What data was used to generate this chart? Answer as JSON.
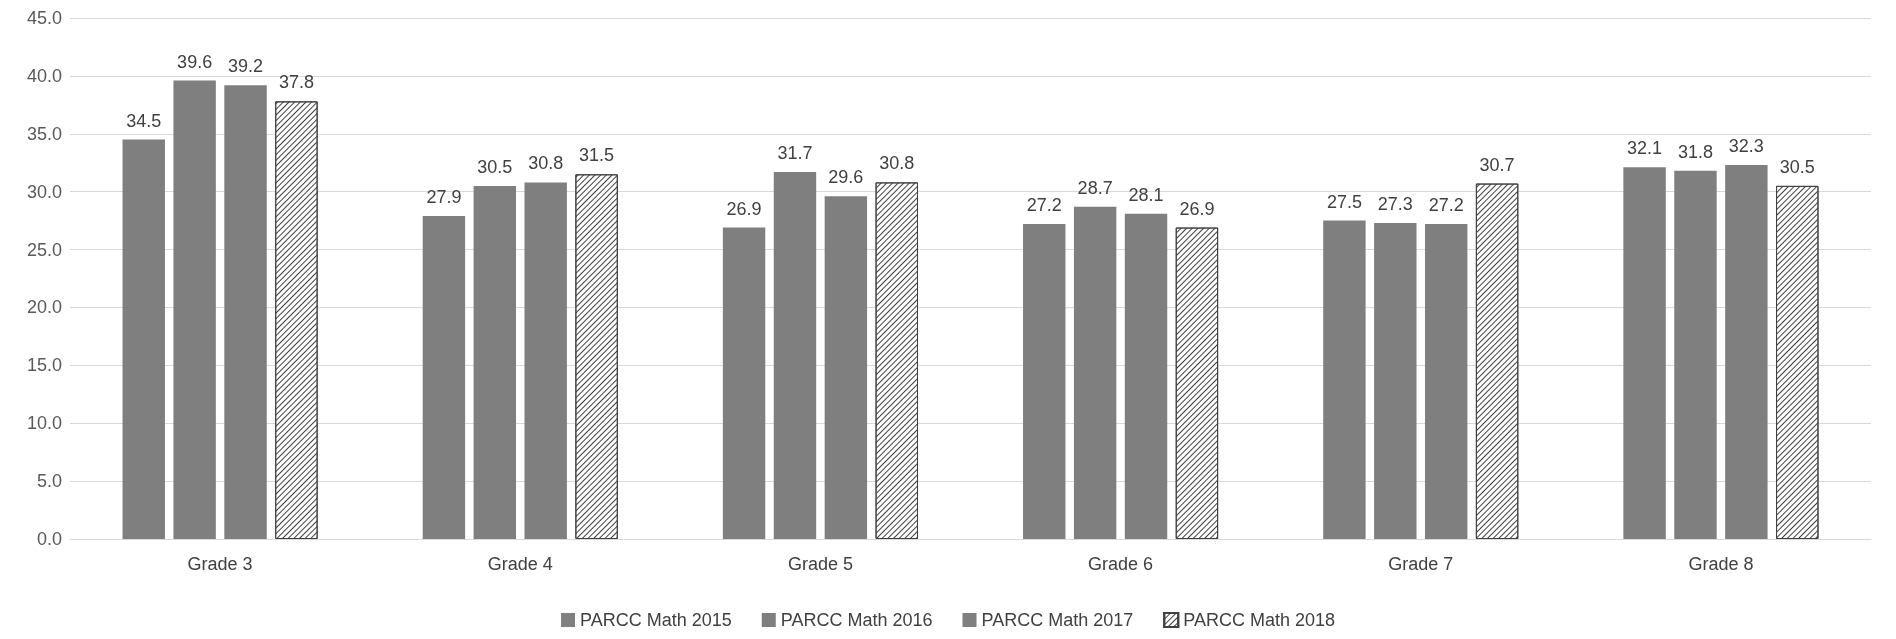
{
  "chart_data": {
    "type": "bar",
    "categories": [
      "Grade 3",
      "Grade 4",
      "Grade 5",
      "Grade 6",
      "Grade 7",
      "Grade 8"
    ],
    "series": [
      {
        "name": "PARCC Math 2015",
        "color": "#7f7f7f",
        "values": [
          34.5,
          27.9,
          26.9,
          27.2,
          27.5,
          32.1
        ]
      },
      {
        "name": "PARCC Math 2016",
        "color": "#7f7f7f",
        "values": [
          39.6,
          30.5,
          31.7,
          28.7,
          27.3,
          31.8
        ]
      },
      {
        "name": "PARCC Math 2017",
        "color": "#7f7f7f",
        "values": [
          39.2,
          30.8,
          29.6,
          28.1,
          27.2,
          32.3
        ]
      },
      {
        "name": "PARCC Math 2018",
        "color": "#ffffff",
        "values": [
          37.8,
          31.5,
          30.8,
          26.9,
          30.7,
          30.5
        ]
      }
    ],
    "ylim": [
      0,
      45
    ],
    "yticks": [
      {
        "value": 0,
        "label": "0.0"
      },
      {
        "value": 5,
        "label": "5.0"
      },
      {
        "value": 10,
        "label": "10.0"
      },
      {
        "value": 15,
        "label": "15.0"
      },
      {
        "value": 20,
        "label": "20.0"
      },
      {
        "value": 25,
        "label": "25.0"
      },
      {
        "value": 30,
        "label": "30.0"
      },
      {
        "value": 35,
        "label": "35.0"
      },
      {
        "value": 40,
        "label": "40.0"
      },
      {
        "value": 45,
        "label": "45.0"
      }
    ],
    "grid": "y",
    "legend": "bottom",
    "data_labels": true
  }
}
